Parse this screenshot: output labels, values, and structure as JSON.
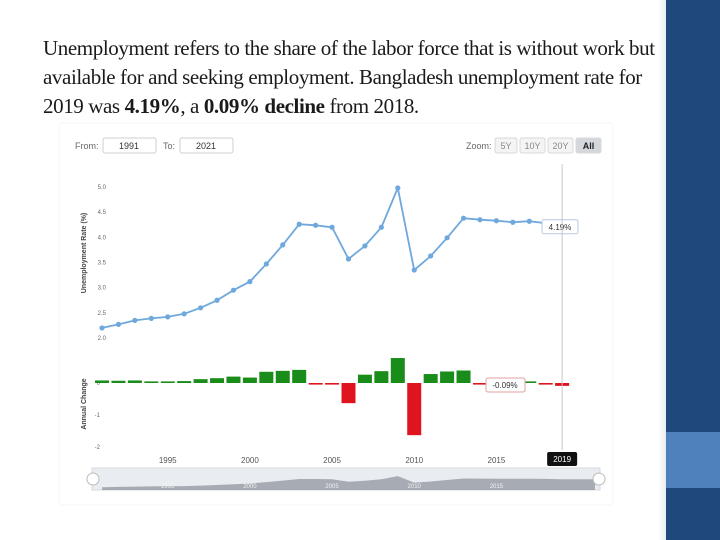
{
  "slide": {
    "text_1": "Unemployment refers to the share of the labor force that is without work but available for and seeking employment. Bangladesh unemployment rate for 2019 was ",
    "bold_value": "4.19%",
    "text_2": ", a ",
    "bold_change": "0.09% decline",
    "text_3": " from 2018."
  },
  "colors": {
    "line": "#6fa8dc",
    "positive_bar": "#1a8c1a",
    "negative_bar": "#e0141e",
    "band_dark": "#1f497d",
    "band_light": "#4f81bd"
  },
  "controls": {
    "from_label": "From:",
    "from_value": "1991",
    "to_label": "To:",
    "to_value": "2021",
    "zoom_label": "Zoom:",
    "zoom_buttons": [
      "5Y",
      "10Y",
      "20Y",
      "All"
    ],
    "zoom_active": "All"
  },
  "chart_data": [
    {
      "type": "line",
      "ylabel": "Unemployment Rate (%)",
      "ylim": [
        2.0,
        5.0
      ],
      "yticks": [
        "5.0",
        "4.5",
        "4.0",
        "3.5",
        "3.0",
        "2.5",
        "2.0"
      ],
      "x": [
        1991,
        1992,
        1993,
        1994,
        1995,
        1996,
        1997,
        1998,
        1999,
        2000,
        2001,
        2002,
        2003,
        2004,
        2005,
        2006,
        2007,
        2008,
        2009,
        2010,
        2011,
        2012,
        2013,
        2014,
        2015,
        2016,
        2017,
        2018,
        2019
      ],
      "values": [
        2.2,
        2.27,
        2.35,
        2.39,
        2.42,
        2.48,
        2.6,
        2.75,
        2.95,
        3.12,
        3.47,
        3.85,
        4.26,
        4.24,
        4.2,
        3.57,
        3.83,
        4.2,
        4.98,
        3.35,
        3.63,
        3.99,
        4.38,
        4.35,
        4.33,
        4.3,
        4.32,
        4.28,
        4.19
      ],
      "tooltip": "4.19%",
      "grid": false
    },
    {
      "type": "bar",
      "ylabel": "Annual Change",
      "ylim": [
        -2,
        0.5
      ],
      "yticks": [
        "0",
        "-1",
        "-2"
      ],
      "x": [
        1991,
        1992,
        1993,
        1994,
        1995,
        1996,
        1997,
        1998,
        1999,
        2000,
        2001,
        2002,
        2003,
        2004,
        2005,
        2006,
        2007,
        2008,
        2009,
        2010,
        2011,
        2012,
        2013,
        2014,
        2015,
        2016,
        2017,
        2018,
        2019
      ],
      "values": [
        0.08,
        0.07,
        0.08,
        0.04,
        0.03,
        0.06,
        0.12,
        0.15,
        0.2,
        0.17,
        0.35,
        0.38,
        0.41,
        -0.02,
        -0.04,
        -0.63,
        0.26,
        0.37,
        0.78,
        -1.63,
        0.28,
        0.36,
        0.39,
        -0.03,
        -0.02,
        -0.03,
        0.02,
        -0.04,
        -0.09
      ],
      "tooltip": "-0.09%",
      "xticks": [
        "1995",
        "2000",
        "2005",
        "2010",
        "2015"
      ],
      "highlight_label": "2019"
    }
  ],
  "navigator": {
    "labels": [
      "1995",
      "2000",
      "2005",
      "2010",
      "2015"
    ]
  }
}
